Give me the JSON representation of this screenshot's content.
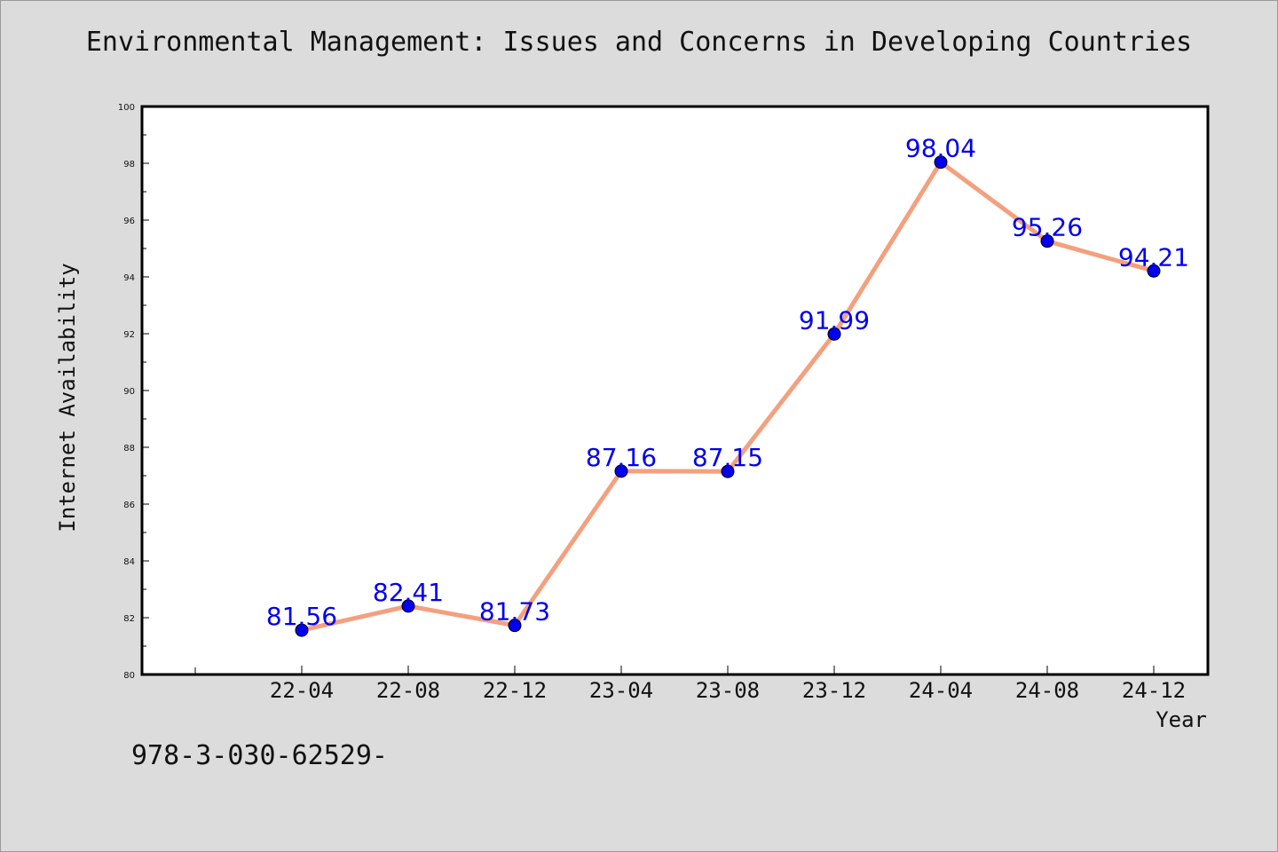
{
  "chart_data": {
    "type": "line",
    "title": "Environmental Management: Issues and Concerns in Developing Countries",
    "xlabel": "Year",
    "ylabel": "Internet Availability",
    "categories": [
      "22-04",
      "22-08",
      "22-12",
      "23-04",
      "23-08",
      "23-12",
      "24-04",
      "24-08",
      "24-12"
    ],
    "series": [
      {
        "values": [
          81.56,
          82.41,
          81.73,
          87.16,
          87.15,
          91.99,
          98.04,
          95.26,
          94.21
        ]
      }
    ],
    "data_labels": [
      "81.56",
      "82.41",
      "81.73",
      "87.16",
      "87.15",
      "91.99",
      "98.04",
      "95.26",
      "94.21"
    ],
    "ylim": [
      80,
      100
    ],
    "yticks": [
      "80",
      "82",
      "84",
      "86",
      "88",
      "90",
      "92",
      "94",
      "96",
      "98",
      "100"
    ],
    "grid": false,
    "colors": {
      "line": "#f4a07e",
      "marker": "#0000ee",
      "label": "#0000ee"
    }
  },
  "footer_text": "978-3-030-62529-"
}
